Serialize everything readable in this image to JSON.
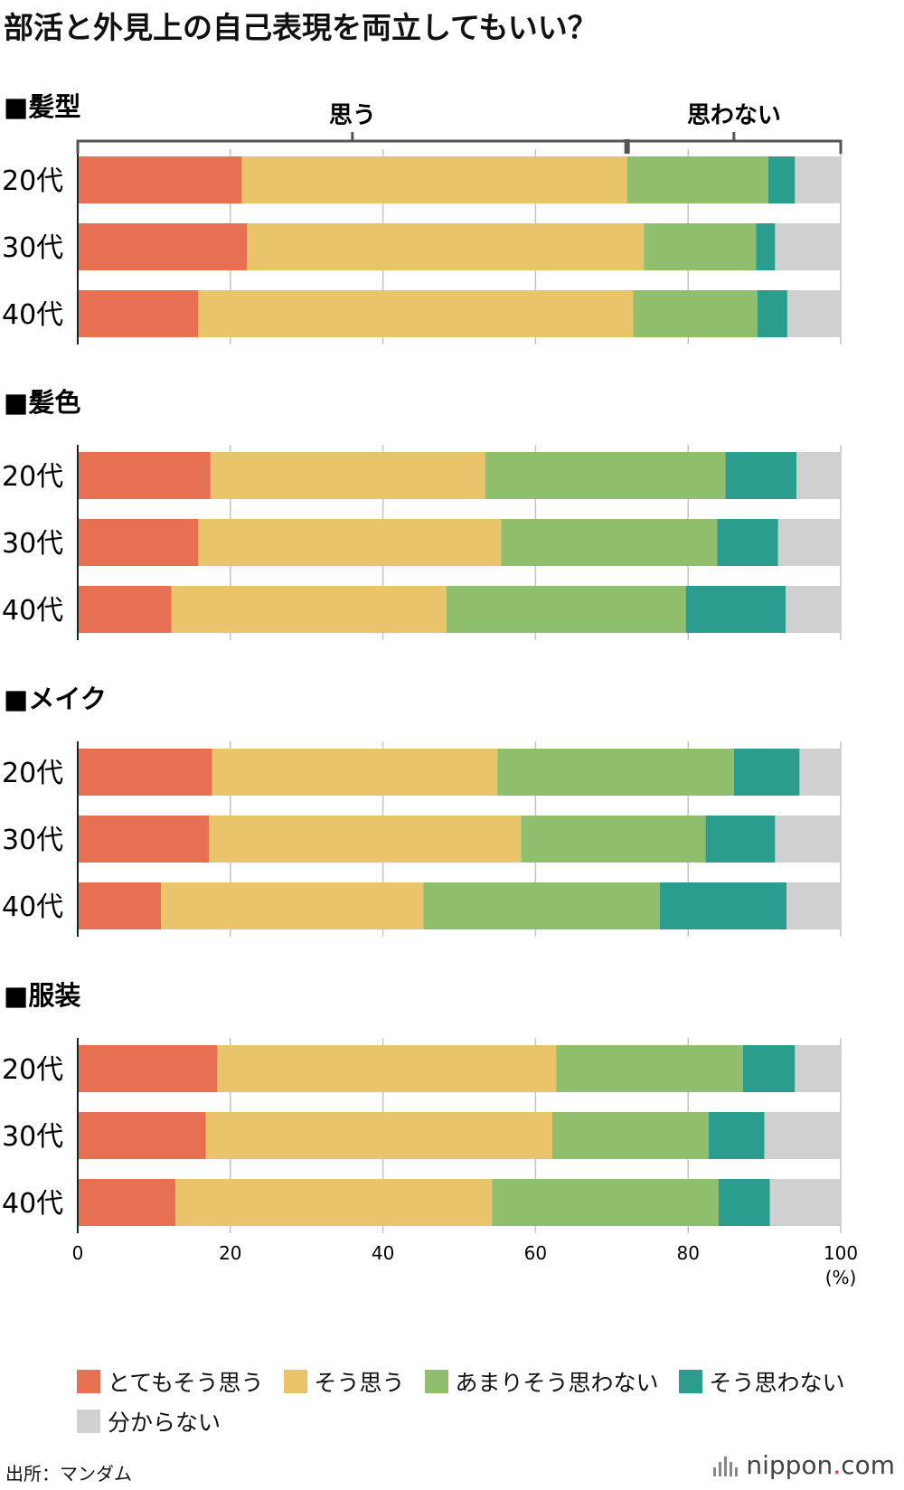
{
  "title": "部活と外見上の自己表現を両立してもいい？",
  "source": "出所：マンダム",
  "logo": {
    "name": "nippon",
    "dot": ".",
    "suffix": "com"
  },
  "chart_data": {
    "type": "bar",
    "orientation": "horizontal",
    "stacked": true,
    "xlim": [
      0,
      100
    ],
    "xticks": [
      0,
      20,
      40,
      60,
      80,
      100
    ],
    "xtick_labels": [
      "0",
      "20",
      "40",
      "60",
      "80",
      "100"
    ],
    "unit": "(%)",
    "grid": true,
    "legend_position": "bottom",
    "brackets": [
      {
        "label": "思う",
        "from": 0,
        "to": 72
      },
      {
        "label": "思わない",
        "from": 72,
        "to": 100
      }
    ],
    "series": [
      {
        "name": "とてもそう思う",
        "color": "#e87052"
      },
      {
        "name": "そう思う",
        "color": "#e9c46a"
      },
      {
        "name": "あまりそう思わない",
        "color": "#8fbf6c"
      },
      {
        "name": "そう思わない",
        "color": "#2a9d8f"
      },
      {
        "name": "分からない",
        "color": "#d0d0d0"
      }
    ],
    "groups": [
      {
        "title": "■髪型",
        "rows": [
          {
            "label": "20代",
            "values": [
              21.5,
              50.5,
              18.5,
              3.5,
              6.0
            ]
          },
          {
            "label": "30代",
            "values": [
              22.2,
              52.0,
              14.7,
              2.5,
              8.6
            ]
          },
          {
            "label": "40代",
            "values": [
              15.8,
              57.0,
              16.3,
              3.9,
              7.0
            ]
          }
        ]
      },
      {
        "title": "■髪色",
        "rows": [
          {
            "label": "20代",
            "values": [
              17.4,
              36.0,
              31.5,
              9.3,
              5.8
            ]
          },
          {
            "label": "30代",
            "values": [
              15.8,
              39.7,
              28.3,
              8.0,
              8.2
            ]
          },
          {
            "label": "40代",
            "values": [
              12.3,
              36.0,
              31.4,
              13.1,
              7.2
            ]
          }
        ]
      },
      {
        "title": "■メイク",
        "rows": [
          {
            "label": "20代",
            "values": [
              17.6,
              37.4,
              31.0,
              8.6,
              5.4
            ]
          },
          {
            "label": "30代",
            "values": [
              17.2,
              40.9,
              24.2,
              9.1,
              8.6
            ]
          },
          {
            "label": "40代",
            "values": [
              10.9,
              34.4,
              31.0,
              16.6,
              7.1
            ]
          }
        ]
      },
      {
        "title": "■服装",
        "rows": [
          {
            "label": "20代",
            "values": [
              18.3,
              44.4,
              24.5,
              6.8,
              6.0
            ]
          },
          {
            "label": "30代",
            "values": [
              16.8,
              45.4,
              20.5,
              7.3,
              10.0
            ]
          },
          {
            "label": "40代",
            "values": [
              12.8,
              41.5,
              29.7,
              6.7,
              9.3
            ]
          }
        ]
      }
    ]
  }
}
